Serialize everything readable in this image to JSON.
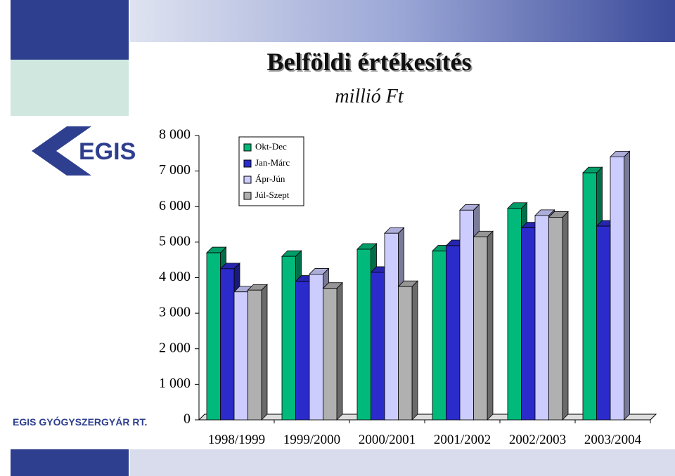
{
  "logo": "EGIS",
  "company": "EGIS GYÓGYSZERGYÁR RT.",
  "chart_data": {
    "type": "bar3d",
    "title": "Belföldi értékesítés",
    "subtitle": "millió Ft",
    "categories": [
      "1998/1999",
      "1999/2000",
      "2000/2001",
      "2001/2002",
      "2002/2003",
      "2003/2004"
    ],
    "series": [
      {
        "name": "Okt-Dec",
        "color": "#00b97a",
        "values": [
          4700,
          4600,
          4800,
          4750,
          5950,
          6950
        ]
      },
      {
        "name": "Jan-Márc",
        "color": "#2b2bcc",
        "values": [
          4250,
          3900,
          4150,
          4900,
          5400,
          5450
        ]
      },
      {
        "name": "Ápr-Jún",
        "color": "#ccccff",
        "values": [
          3600,
          4100,
          5250,
          5900,
          5750,
          7400
        ]
      },
      {
        "name": "Júl-Szept",
        "color": "#b0b0b0",
        "values": [
          3650,
          3700,
          3750,
          5150,
          5700,
          null
        ]
      }
    ],
    "ylim": [
      0,
      8000
    ],
    "yticks": [
      0,
      {
        "value": 1000,
        "label": "1 000"
      },
      {
        "value": 2000,
        "label": "2 000"
      },
      {
        "value": 3000,
        "label": "3 000"
      },
      {
        "value": 4000,
        "label": "4 000"
      },
      {
        "value": 5000,
        "label": "5 000"
      },
      {
        "value": 6000,
        "label": "6 000"
      },
      {
        "value": 7000,
        "label": "7 000"
      },
      {
        "value": 8000,
        "label": "8 000"
      }
    ],
    "legend": "top-left"
  }
}
